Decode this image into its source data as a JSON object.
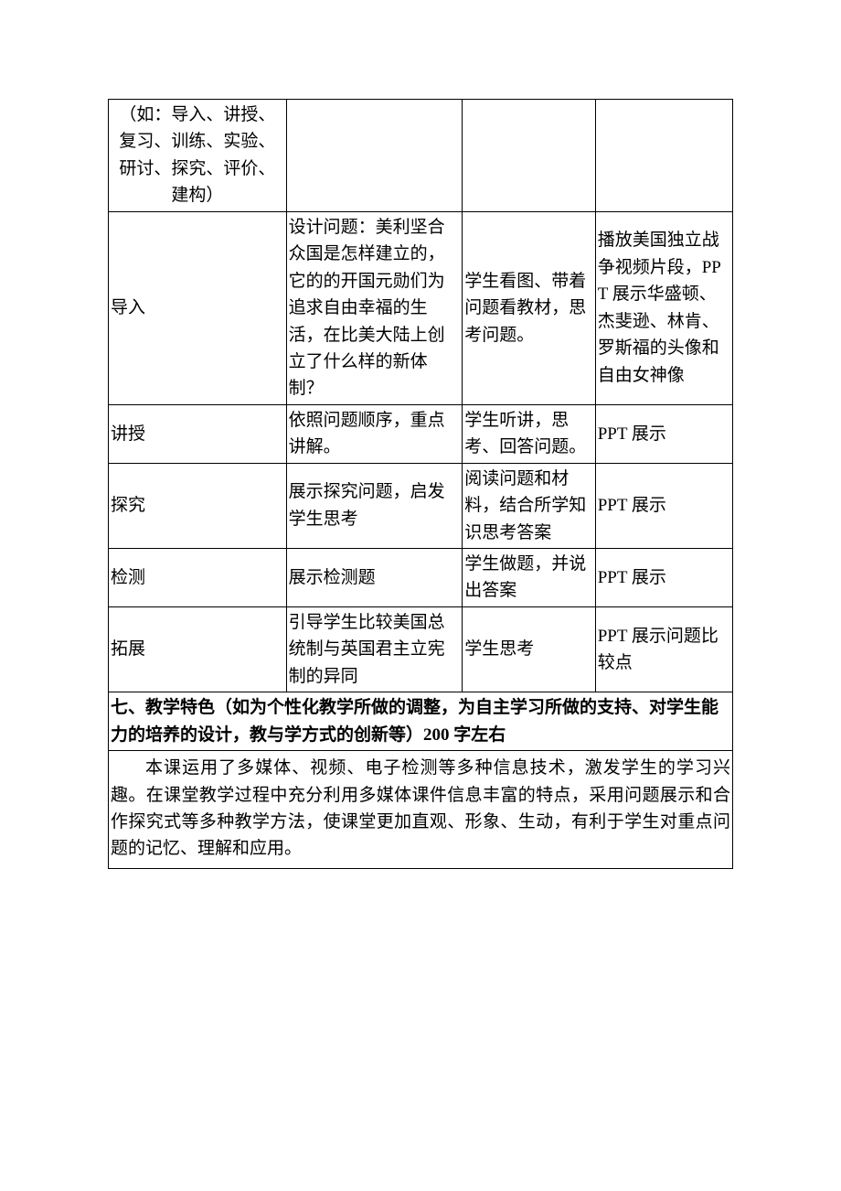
{
  "table": {
    "border_color": "#000000",
    "background_color": "#ffffff",
    "text_color": "#000000",
    "font_family": "SimSun",
    "base_font_size_pt": 14,
    "columns": [
      {
        "key": "stage",
        "width_pct": 28.5
      },
      {
        "key": "teacher_activity",
        "width_pct": 28.2
      },
      {
        "key": "student_activity",
        "width_pct": 21.3
      },
      {
        "key": "it_support",
        "width_pct": 22.0
      }
    ],
    "rows": [
      {
        "stage_note": "（如：导入、讲授、复习、训练、实验、研讨、探究、评价、建构）",
        "teacher_activity": "",
        "student_activity": "",
        "it_support": ""
      },
      {
        "stage": "导入",
        "teacher_activity": "设计问题：美利坚合众国是怎样建立的，它的的开国元勋们为追求自由幸福的生活，在比美大陆上创立了什么样的新体制？",
        "student_activity": "学生看图、带着问题看教材，思考问题。",
        "it_support": "播放美国独立战争视频片段，PPT 展示华盛顿、杰斐逊、林肯、罗斯福的头像和自由女神像"
      },
      {
        "stage": "讲授",
        "teacher_activity": "依照问题顺序，重点讲解。",
        "student_activity": "学生听讲，思考、回答问题。",
        "it_support": "PPT 展示"
      },
      {
        "stage": "探究",
        "teacher_activity": "展示探究问题，启发学生思考",
        "student_activity": "阅读问题和材料，结合所学知识思考答案",
        "it_support": "PPT 展示"
      },
      {
        "stage": "检测",
        "teacher_activity": "展示检测题",
        "student_activity": "学生做题，并说出答案",
        "it_support": "PPT 展示"
      },
      {
        "stage": "拓展",
        "teacher_activity": "引导学生比较美国总统制与英国君主立宪制的异同",
        "student_activity": "学生思考",
        "it_support": "PPT 展示问题比较点"
      }
    ],
    "section7_header": "七、教学特色（如为个性化教学所做的调整，为自主学习所做的支持、对学生能力的培养的设计，教与学方式的创新等）200 字左右",
    "section7_body": "本课运用了多媒体、视频、电子检测等多种信息技术，激发学生的学习兴趣。在课堂教学过程中充分利用多媒体课件信息丰富的特点，采用问题展示和合作探究式等多种教学方法，使课堂更加直观、形象、生动，有利于学生对重点问题的记忆、理解和应用。"
  }
}
